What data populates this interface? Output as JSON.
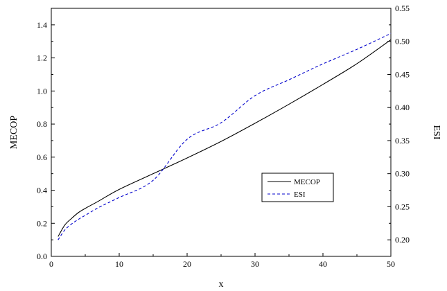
{
  "chart_data": {
    "type": "line",
    "x": [
      1,
      2,
      3,
      4,
      5,
      7,
      10,
      15,
      20,
      25,
      30,
      35,
      40,
      45,
      50
    ],
    "series": [
      {
        "name": "MECOP",
        "axis": "left",
        "color": "#000000",
        "dash": "solid",
        "values": [
          0.12,
          0.19,
          0.23,
          0.265,
          0.29,
          0.335,
          0.405,
          0.5,
          0.595,
          0.695,
          0.805,
          0.92,
          1.04,
          1.165,
          1.31
        ]
      },
      {
        "name": "ESI",
        "axis": "right",
        "color": "#0000cc",
        "dash": "dashed",
        "values": [
          0.2,
          0.215,
          0.224,
          0.231,
          0.237,
          0.249,
          0.264,
          0.29,
          0.352,
          0.377,
          0.418,
          0.442,
          0.466,
          0.488,
          0.512
        ]
      }
    ],
    "xlabel": "x",
    "ylabel_left": "MECOP",
    "ylabel_right": "ESI",
    "xlim": [
      0,
      50
    ],
    "ylim_left": [
      0,
      1.5
    ],
    "ylim_right": [
      0.175,
      0.55
    ],
    "x_ticks": [
      "0",
      "10",
      "20",
      "30",
      "40",
      "50"
    ],
    "y_left_ticks": [
      "0.0",
      "0.2",
      "0.4",
      "0.6",
      "0.8",
      "1.0",
      "1.2",
      "1.4"
    ],
    "y_right_ticks": [
      "0.20",
      "0.25",
      "0.30",
      "0.35",
      "0.40",
      "0.45",
      "0.50",
      "0.55"
    ],
    "legend": [
      "MECOP",
      "ESI"
    ],
    "legend_position": "center-right",
    "grid": false
  }
}
